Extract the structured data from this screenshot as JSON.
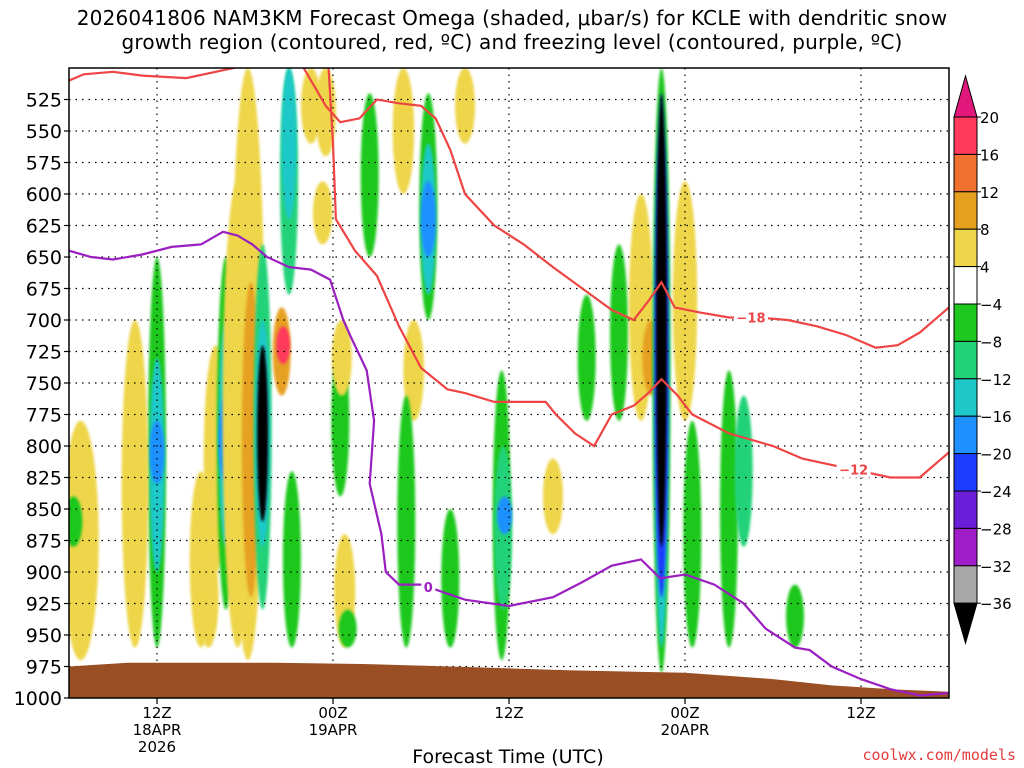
{
  "title_line1": "2026041806 NAM3KM Forecast Omega (shaded, μbar/s) for KCLE with dendritic snow",
  "title_line2": "growth region (contoured, red, ºC) and freezing level (contoured, purple, ºC)",
  "credit": "coolwx.com/models",
  "chart_data": {
    "type": "heatmap",
    "xlabel": "Forecast Time (UTC)",
    "x_range_hours": [
      6,
      66
    ],
    "y_pressure_range_hPa": [
      500,
      1000
    ],
    "y_ticks": [
      525,
      550,
      575,
      600,
      625,
      650,
      675,
      700,
      725,
      750,
      775,
      800,
      825,
      850,
      875,
      900,
      925,
      950,
      975,
      1000
    ],
    "x_ticks": [
      {
        "hour": 12,
        "lines": [
          "12Z",
          "18APR",
          "2026"
        ]
      },
      {
        "hour": 24,
        "lines": [
          "00Z",
          "19APR"
        ]
      },
      {
        "hour": 36,
        "lines": [
          "12Z"
        ]
      },
      {
        "hour": 48,
        "lines": [
          "00Z",
          "20APR"
        ]
      },
      {
        "hour": 60,
        "lines": [
          "12Z"
        ]
      }
    ],
    "grid": "dotted",
    "colorbar": {
      "labels": [
        "20",
        "16",
        "12",
        "8",
        "4",
        "−4",
        "−8",
        "−12",
        "−16",
        "−20",
        "−24",
        "−28",
        "−32",
        "−36"
      ],
      "colors": [
        "#ff3a5c",
        "#f07030",
        "#e6a020",
        "#eed54a",
        "#ffffff",
        "#1ec81e",
        "#22d278",
        "#1ec8c8",
        "#1e90ff",
        "#1e3cff",
        "#6a1ed8",
        "#a01ec8",
        "#a8a8a8",
        "#000000"
      ],
      "top_arrow_color": "#e2177b",
      "bottom_arrow_color": "#000000"
    },
    "omega_cells": [
      {
        "t": 12.0,
        "p_top": 650,
        "p_bot": 960,
        "v": -8
      },
      {
        "t": 12.0,
        "p_top": 730,
        "p_bot": 900,
        "v": -14
      },
      {
        "t": 12.0,
        "p_top": 780,
        "p_bot": 830,
        "v": -18
      },
      {
        "t": 10.5,
        "p_top": 700,
        "p_bot": 960,
        "v": 5
      },
      {
        "t": 15.0,
        "p_top": 820,
        "p_bot": 960,
        "v": 5
      },
      {
        "t": 16.0,
        "p_top": 720,
        "p_bot": 900,
        "v": 5
      },
      {
        "t": 15.5,
        "p_top": 880,
        "p_bot": 960,
        "v": 6
      },
      {
        "t": 16.7,
        "p_top": 650,
        "p_bot": 930,
        "v": -8
      },
      {
        "t": 16.7,
        "p_top": 700,
        "p_bot": 880,
        "v": -14
      },
      {
        "t": 16.7,
        "p_top": 760,
        "p_bot": 830,
        "v": -18
      },
      {
        "t": 17.5,
        "p_top": 590,
        "p_bot": 960,
        "v": 5
      },
      {
        "t": 18.2,
        "p_top": 500,
        "p_bot": 970,
        "v": 6
      },
      {
        "t": 18.4,
        "p_top": 670,
        "p_bot": 920,
        "v": 10
      },
      {
        "t": 19.2,
        "p_top": 640,
        "p_bot": 930,
        "v": -10
      },
      {
        "t": 19.2,
        "p_top": 700,
        "p_bot": 880,
        "v": -16
      },
      {
        "t": 19.2,
        "p_top": 720,
        "p_bot": 860,
        "v": -36
      },
      {
        "t": 20.5,
        "p_top": 690,
        "p_bot": 760,
        "v": 12
      },
      {
        "t": 20.6,
        "p_top": 705,
        "p_bot": 735,
        "v": 20
      },
      {
        "t": 21.0,
        "p_top": 500,
        "p_bot": 680,
        "v": -10
      },
      {
        "t": 21.0,
        "p_top": 500,
        "p_bot": 620,
        "v": -16
      },
      {
        "t": 21.2,
        "p_top": 820,
        "p_bot": 960,
        "v": -8
      },
      {
        "t": 22.5,
        "p_top": 500,
        "p_bot": 560,
        "v": 5
      },
      {
        "t": 23.5,
        "p_top": 500,
        "p_bot": 570,
        "v": 6
      },
      {
        "t": 23.3,
        "p_top": 590,
        "p_bot": 640,
        "v": 5
      },
      {
        "t": 24.5,
        "p_top": 720,
        "p_bot": 840,
        "v": -8
      },
      {
        "t": 24.6,
        "p_top": 700,
        "p_bot": 760,
        "v": 5
      },
      {
        "t": 24.8,
        "p_top": 870,
        "p_bot": 960,
        "v": 5
      },
      {
        "t": 25.0,
        "p_top": 930,
        "p_bot": 960,
        "v": -8
      },
      {
        "t": 26.5,
        "p_top": 520,
        "p_bot": 650,
        "v": -8
      },
      {
        "t": 28.8,
        "p_top": 500,
        "p_bot": 600,
        "v": 5
      },
      {
        "t": 29.5,
        "p_top": 700,
        "p_bot": 780,
        "v": 5
      },
      {
        "t": 30.5,
        "p_top": 520,
        "p_bot": 700,
        "v": -8
      },
      {
        "t": 30.5,
        "p_top": 560,
        "p_bot": 680,
        "v": -14
      },
      {
        "t": 30.5,
        "p_top": 590,
        "p_bot": 650,
        "v": -18
      },
      {
        "t": 29.0,
        "p_top": 760,
        "p_bot": 960,
        "v": -8
      },
      {
        "t": 32.0,
        "p_top": 850,
        "p_bot": 960,
        "v": -8
      },
      {
        "t": 33.0,
        "p_top": 500,
        "p_bot": 560,
        "v": 5
      },
      {
        "t": 35.5,
        "p_top": 740,
        "p_bot": 970,
        "v": -8
      },
      {
        "t": 35.6,
        "p_top": 800,
        "p_bot": 930,
        "v": -12
      },
      {
        "t": 35.7,
        "p_top": 840,
        "p_bot": 870,
        "v": -18
      },
      {
        "t": 39.0,
        "p_top": 810,
        "p_bot": 870,
        "v": 5
      },
      {
        "t": 41.3,
        "p_top": 680,
        "p_bot": 780,
        "v": -8
      },
      {
        "t": 43.5,
        "p_top": 640,
        "p_bot": 780,
        "v": -8
      },
      {
        "t": 45.0,
        "p_top": 600,
        "p_bot": 780,
        "v": 5
      },
      {
        "t": 45.7,
        "p_top": 700,
        "p_bot": 760,
        "v": 10
      },
      {
        "t": 46.4,
        "p_top": 500,
        "p_bot": 980,
        "v": -8
      },
      {
        "t": 46.4,
        "p_top": 520,
        "p_bot": 960,
        "v": -16
      },
      {
        "t": 46.4,
        "p_top": 550,
        "p_bot": 920,
        "v": -24
      },
      {
        "t": 46.4,
        "p_top": 520,
        "p_bot": 880,
        "v": -36
      },
      {
        "t": 48.0,
        "p_top": 590,
        "p_bot": 780,
        "v": 5
      },
      {
        "t": 48.5,
        "p_top": 780,
        "p_bot": 960,
        "v": -8
      },
      {
        "t": 51.0,
        "p_top": 740,
        "p_bot": 960,
        "v": -8
      },
      {
        "t": 52.0,
        "p_top": 760,
        "p_bot": 880,
        "v": -12
      },
      {
        "t": 55.5,
        "p_top": 910,
        "p_bot": 960,
        "v": -8
      },
      {
        "t": 6.8,
        "p_top": 780,
        "p_bot": 970,
        "v": 5
      },
      {
        "t": 6.3,
        "p_top": 840,
        "p_bot": 880,
        "v": -8
      }
    ],
    "dgz_lines": [
      {
        "label": "−18",
        "label_at_hour": 52.5,
        "points": [
          [
            6,
            510
          ],
          [
            7,
            505
          ],
          [
            9,
            503
          ],
          [
            11,
            506
          ],
          [
            14,
            508
          ],
          [
            16,
            503
          ],
          [
            18,
            498
          ],
          [
            20,
            492
          ],
          [
            21,
            495
          ],
          [
            22,
            500
          ],
          [
            23.5,
            530
          ],
          [
            24.5,
            543
          ],
          [
            25.8,
            540
          ],
          [
            27,
            525
          ],
          [
            28.5,
            528
          ],
          [
            30,
            530
          ],
          [
            31,
            540
          ],
          [
            32,
            565
          ],
          [
            33,
            600
          ],
          [
            35,
            625
          ],
          [
            37,
            640
          ],
          [
            39,
            658
          ],
          [
            41,
            675
          ],
          [
            43,
            692
          ],
          [
            44.5,
            700
          ],
          [
            45.5,
            685
          ],
          [
            46.4,
            670
          ],
          [
            47.3,
            690
          ],
          [
            49,
            694
          ],
          [
            51,
            698
          ],
          [
            53,
            698
          ],
          [
            55,
            700
          ],
          [
            57,
            705
          ],
          [
            59,
            712
          ],
          [
            61,
            722
          ],
          [
            62.5,
            720
          ],
          [
            64,
            710
          ],
          [
            66,
            690
          ]
        ]
      },
      {
        "label": "−12",
        "label_at_hour": 59.5,
        "points": [
          [
            23.7,
            500
          ],
          [
            24,
            560
          ],
          [
            24.2,
            620
          ],
          [
            25.5,
            645
          ],
          [
            27,
            665
          ],
          [
            28.5,
            705
          ],
          [
            30,
            738
          ],
          [
            31.8,
            755
          ],
          [
            33,
            758
          ],
          [
            35,
            765
          ],
          [
            37,
            765
          ],
          [
            38.5,
            765
          ],
          [
            39.2,
            775
          ],
          [
            40.5,
            790
          ],
          [
            41.8,
            800
          ],
          [
            43,
            775
          ],
          [
            44.5,
            768
          ],
          [
            45.5,
            758
          ],
          [
            46.4,
            747
          ],
          [
            47.5,
            760
          ],
          [
            48.5,
            775
          ],
          [
            51,
            790
          ],
          [
            54,
            800
          ],
          [
            56,
            810
          ],
          [
            58,
            815
          ],
          [
            60,
            820
          ],
          [
            62,
            825
          ],
          [
            64,
            825
          ],
          [
            66,
            805
          ]
        ]
      }
    ],
    "freezing_level": {
      "label": "0",
      "label_at_hour": 30.5,
      "points": [
        [
          6,
          645
        ],
        [
          7.5,
          650
        ],
        [
          9,
          652
        ],
        [
          11,
          648
        ],
        [
          13,
          642
        ],
        [
          15,
          640
        ],
        [
          16.5,
          630
        ],
        [
          17.5,
          633
        ],
        [
          18.5,
          640
        ],
        [
          19.5,
          650
        ],
        [
          21,
          658
        ],
        [
          22.5,
          660
        ],
        [
          23.8,
          668
        ],
        [
          24.7,
          700
        ],
        [
          25.2,
          713
        ],
        [
          26.3,
          740
        ],
        [
          26.8,
          780
        ],
        [
          26.5,
          830
        ],
        [
          27.3,
          870
        ],
        [
          27.6,
          900
        ],
        [
          28.5,
          910
        ],
        [
          30,
          910
        ],
        [
          33,
          922
        ],
        [
          36,
          927
        ],
        [
          39,
          920
        ],
        [
          41,
          908
        ],
        [
          43,
          895
        ],
        [
          45,
          890
        ],
        [
          46.3,
          905
        ],
        [
          48,
          902
        ],
        [
          50,
          910
        ],
        [
          52,
          925
        ],
        [
          53.5,
          945
        ],
        [
          55.5,
          960
        ],
        [
          56.5,
          962
        ],
        [
          58,
          975
        ],
        [
          60,
          985
        ],
        [
          62,
          993
        ],
        [
          64,
          998
        ],
        [
          66,
          996
        ]
      ]
    },
    "terrain_top_hPa": [
      [
        6,
        975
      ],
      [
        10,
        972
      ],
      [
        14,
        972
      ],
      [
        20,
        972
      ],
      [
        26,
        973
      ],
      [
        32,
        975
      ],
      [
        40,
        978
      ],
      [
        48,
        980
      ],
      [
        54,
        985
      ],
      [
        58,
        990
      ],
      [
        62,
        993
      ],
      [
        66,
        995
      ]
    ]
  }
}
